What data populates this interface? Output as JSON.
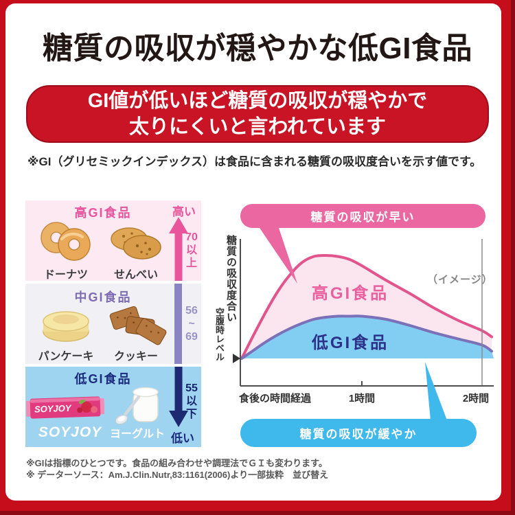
{
  "colors": {
    "frame_red": "#c50d1c",
    "banner_red": "#c81425",
    "high_gi_pink": "#e8559c",
    "high_section_bg": "#fce9f1",
    "mid_gi_purple": "#7d6cb3",
    "mid_section_bg": "#f1f0f4",
    "low_gi_navy": "#1b2c7e",
    "low_section_bg": "#9ed4f0",
    "chart_high_stroke": "#e1548c",
    "chart_high_fill": "#fbe6f0",
    "chart_low_stroke": "#7b71b8",
    "chart_low_fill": "#82cef2",
    "badge_fast_bg": "#ea67a1",
    "badge_slow_bg": "#3fb8ec"
  },
  "header": {
    "title": "糖質の吸収が穏やかな低GI食品"
  },
  "banner": {
    "line1": "GI値が低いほど糖質の吸収が穏やかで",
    "line2": "太りにくいと言われています"
  },
  "gi_note": "※GI（グリセミックインデックス）は食品に含まれる糖質の吸収度合いを示す値です。",
  "food_panel": {
    "sections": [
      {
        "title": "高GI食品",
        "foods": [
          {
            "label": "ドーナツ"
          },
          {
            "label": "せんべい"
          }
        ],
        "scale_label": "高い",
        "range": "70以上",
        "range_parts": [
          "70",
          "以",
          "上"
        ]
      },
      {
        "title": "中GI食品",
        "foods": [
          {
            "label": "パンケーキ"
          },
          {
            "label": "クッキー"
          }
        ],
        "range": "56~69",
        "range_parts": [
          "56",
          "~",
          "69"
        ]
      },
      {
        "title": "低GI食品",
        "foods": [
          {
            "label": "SOYJOY"
          },
          {
            "label": "ヨーグルト"
          }
        ],
        "scale_label": "低い",
        "range": "55以下",
        "range_parts": [
          "55",
          "以",
          "下"
        ],
        "package_brand": "SOYJOY"
      }
    ]
  },
  "chart_data": {
    "type": "line",
    "title": "",
    "xlabel": "食後の時間経過",
    "x_ticks": [
      "1時間",
      "2時間"
    ],
    "ylabel": "糖質の吸収度合い",
    "baseline_label": "空腹時レベル",
    "image_note": "（イメージ）",
    "y_unit": "relative_0_100_unlabeled",
    "x_hours": [
      0,
      0.1,
      0.2,
      0.3,
      0.4,
      0.5,
      0.6,
      0.7,
      0.8,
      0.9,
      1.0,
      1.2,
      1.4,
      1.6,
      1.8,
      2.0,
      2.08
    ],
    "series": [
      {
        "name": "高GI食品",
        "callout": "糖質の吸収が早い",
        "values": [
          0,
          23,
          45,
          65,
          81,
          93,
          99,
          100,
          99,
          96,
          90,
          76,
          63,
          49,
          37,
          27,
          21
        ]
      },
      {
        "name": "低GI食品",
        "callout": "糖質の吸収が緩やか",
        "values": [
          0,
          8,
          16,
          23,
          29,
          34,
          38,
          40,
          41,
          41,
          41,
          38,
          32,
          25,
          19,
          13,
          7
        ]
      }
    ],
    "legend_position": "inside-plot",
    "grid": false
  },
  "footnotes": [
    "※GIは指標のひとつです。食品の組み合わせや調理法でＧＩも変わります。",
    "※ データーソース：Am.J.Clin.Nutr,83:1161(2006)より一部抜粋　並び替え"
  ]
}
